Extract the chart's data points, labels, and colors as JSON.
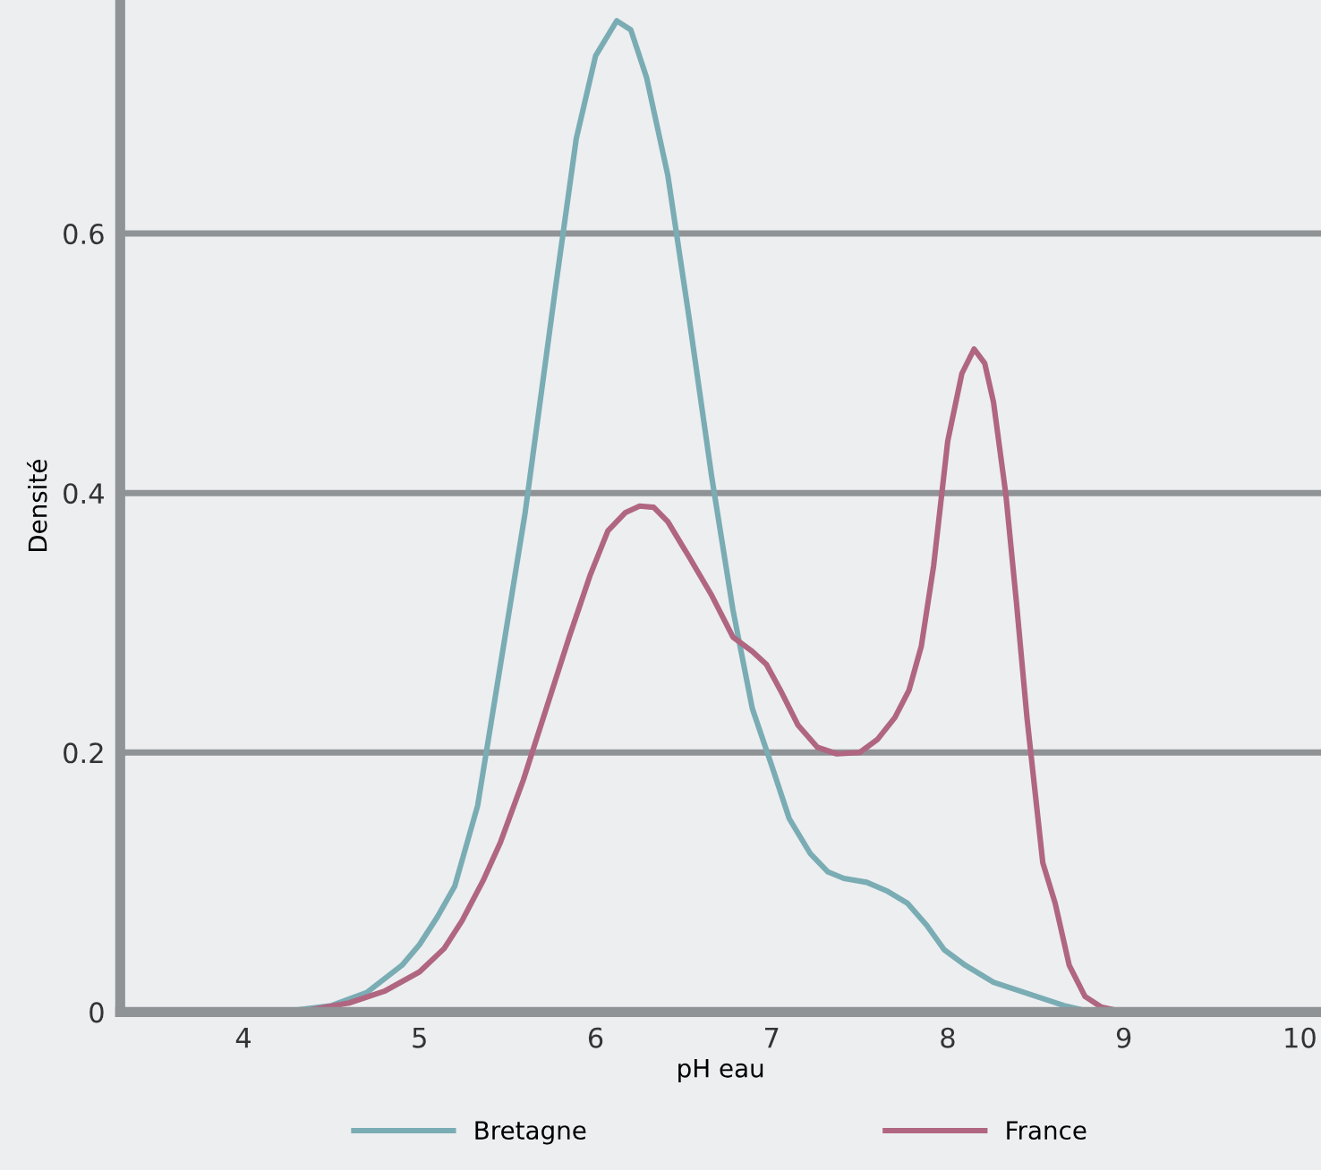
{
  "chart_data": {
    "type": "line",
    "xlabel": "pH eau",
    "ylabel": "Densité",
    "xlim": [
      3.3,
      10.12
    ],
    "ylim": [
      0,
      0.78
    ],
    "xticks": [
      4,
      5,
      6,
      7,
      8,
      9,
      10
    ],
    "yticks": [
      0,
      0.2,
      0.4,
      0.6
    ],
    "grid": "y",
    "legend": "bottom",
    "marker": "none",
    "line_style": "solid",
    "series": [
      {
        "name": "Bretagne",
        "color": "#7aacb4",
        "x": [
          4.2,
          4.5,
          4.7,
          4.9,
          5.0,
          5.1,
          5.2,
          5.33,
          5.6,
          5.77,
          5.89,
          6.0,
          6.12,
          6.2,
          6.29,
          6.41,
          6.53,
          6.66,
          6.78,
          6.89,
          7.0,
          7.1,
          7.22,
          7.32,
          7.41,
          7.54,
          7.66,
          7.77,
          7.88,
          7.98,
          8.1,
          8.26,
          8.46,
          8.66,
          8.82
        ],
        "values": [
          0,
          0.005,
          0.015,
          0.036,
          0.052,
          0.073,
          0.097,
          0.159,
          0.385,
          0.556,
          0.673,
          0.737,
          0.764,
          0.757,
          0.72,
          0.645,
          0.536,
          0.412,
          0.31,
          0.234,
          0.19,
          0.149,
          0.122,
          0.108,
          0.103,
          0.1,
          0.093,
          0.084,
          0.067,
          0.048,
          0.036,
          0.023,
          0.014,
          0.005,
          0
        ]
      },
      {
        "name": "France",
        "color": "#b06680",
        "x": [
          4.2,
          4.35,
          4.6,
          4.8,
          5.0,
          5.14,
          5.24,
          5.36,
          5.46,
          5.59,
          5.72,
          5.85,
          5.97,
          6.07,
          6.17,
          6.25,
          6.33,
          6.41,
          6.53,
          6.66,
          6.78,
          6.89,
          6.97,
          7.05,
          7.15,
          7.26,
          7.37,
          7.5,
          7.6,
          7.7,
          7.78,
          7.85,
          7.92,
          8.0,
          8.08,
          8.15,
          8.21,
          8.26,
          8.33,
          8.39,
          8.45,
          8.54,
          8.61,
          8.69,
          8.78,
          8.87,
          9.0
        ],
        "values": [
          0,
          0.001,
          0.007,
          0.016,
          0.031,
          0.049,
          0.07,
          0.101,
          0.131,
          0.179,
          0.234,
          0.289,
          0.337,
          0.371,
          0.385,
          0.39,
          0.389,
          0.378,
          0.351,
          0.321,
          0.289,
          0.278,
          0.268,
          0.248,
          0.221,
          0.204,
          0.199,
          0.2,
          0.21,
          0.227,
          0.248,
          0.282,
          0.344,
          0.44,
          0.492,
          0.511,
          0.5,
          0.47,
          0.399,
          0.316,
          0.227,
          0.115,
          0.084,
          0.036,
          0.012,
          0.004,
          0
        ]
      }
    ]
  }
}
